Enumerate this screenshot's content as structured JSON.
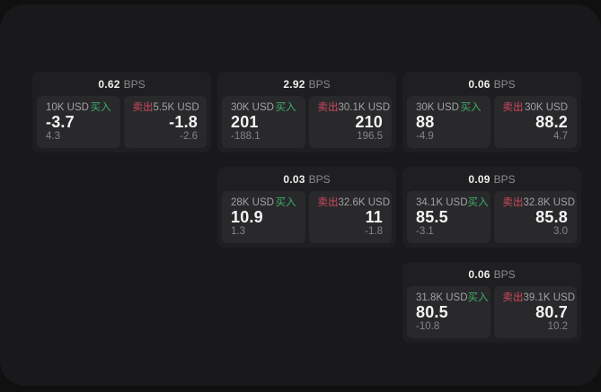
{
  "labels": {
    "buy": "买入",
    "sell": "卖出",
    "bps_unit": "BPS"
  },
  "colors": {
    "buy_accent": "#3fae68",
    "sell_accent": "#d0495f",
    "panel_bg": "#19191b",
    "card_bg": "#1f1f21",
    "subpanel_bg": "#29292b"
  },
  "cards": [
    {
      "bps_value": "0.62",
      "grid": {
        "col": 1,
        "row": 1
      },
      "buy": {
        "size": "10K USD",
        "price": "-3.7",
        "change": "4.3"
      },
      "sell": {
        "size": "5.5K USD",
        "price": "-1.8",
        "change": "-2.6"
      }
    },
    {
      "bps_value": "2.92",
      "grid": {
        "col": 2,
        "row": 1
      },
      "buy": {
        "size": "30K USD",
        "price": "201",
        "change": "-188.1"
      },
      "sell": {
        "size": "30.1K USD",
        "price": "210",
        "change": "196.5"
      }
    },
    {
      "bps_value": "0.06",
      "grid": {
        "col": 3,
        "row": 1
      },
      "buy": {
        "size": "30K USD",
        "price": "88",
        "change": "-4.9"
      },
      "sell": {
        "size": "30K USD",
        "price": "88.2",
        "change": "4.7"
      }
    },
    {
      "bps_value": "0.03",
      "grid": {
        "col": 2,
        "row": 2
      },
      "buy": {
        "size": "28K USD",
        "price": "10.9",
        "change": "1.3"
      },
      "sell": {
        "size": "32.6K USD",
        "price": "11",
        "change": "-1.8"
      }
    },
    {
      "bps_value": "0.09",
      "grid": {
        "col": 3,
        "row": 2
      },
      "buy": {
        "size": "34.1K USD",
        "price": "85.5",
        "change": "-3.1"
      },
      "sell": {
        "size": "32.8K USD",
        "price": "85.8",
        "change": "3.0"
      }
    },
    {
      "bps_value": "0.06",
      "grid": {
        "col": 3,
        "row": 3
      },
      "buy": {
        "size": "31.8K USD",
        "price": "80.5",
        "change": "-10.8"
      },
      "sell": {
        "size": "39.1K USD",
        "price": "80.7",
        "change": "10.2"
      }
    }
  ]
}
